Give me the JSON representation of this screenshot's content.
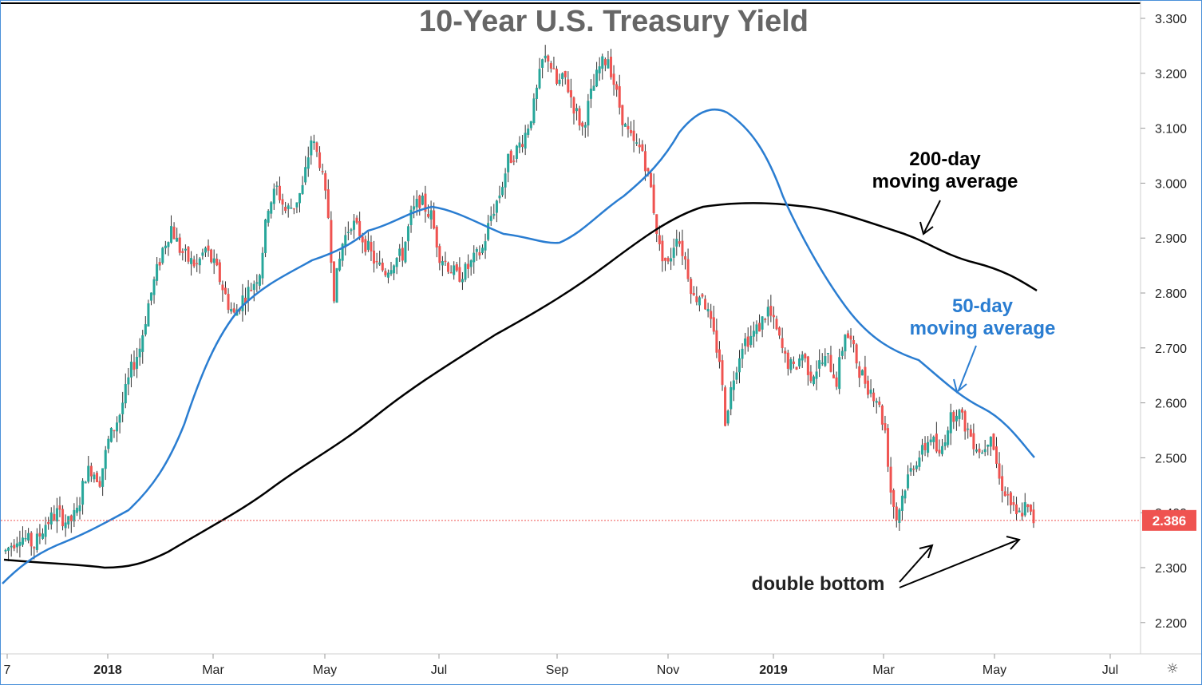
{
  "chart_data": {
    "type": "candlestick",
    "title": "10-Year U.S. Treasury Yield",
    "y_axis": {
      "ticks": [
        "3.300",
        "3.200",
        "3.100",
        "3.000",
        "2.900",
        "2.800",
        "2.700",
        "2.600",
        "2.500",
        "2.400",
        "2.300",
        "2.200"
      ],
      "ylim": [
        2.15,
        3.32
      ]
    },
    "x_axis": {
      "ticks": [
        {
          "label": "7",
          "bold": false
        },
        {
          "label": "2018",
          "bold": true
        },
        {
          "label": "Mar",
          "bold": false
        },
        {
          "label": "May",
          "bold": false
        },
        {
          "label": "Jul",
          "bold": false
        },
        {
          "label": "Sep",
          "bold": false
        },
        {
          "label": "Nov",
          "bold": false
        },
        {
          "label": "2019",
          "bold": true
        },
        {
          "label": "Mar",
          "bold": false
        },
        {
          "label": "May",
          "bold": false
        },
        {
          "label": "Jul",
          "bold": false
        }
      ]
    },
    "last_price": {
      "value": 2.386,
      "label": "2.386",
      "color": "#ef5350"
    },
    "candle_colors": {
      "up": "#26a69a",
      "down": "#ef5350",
      "wick": "#333333"
    },
    "price_path": [
      [
        0,
        2.33
      ],
      [
        5,
        2.36
      ],
      [
        10,
        2.34
      ],
      [
        14,
        2.38
      ],
      [
        18,
        2.4
      ],
      [
        22,
        2.38
      ],
      [
        25,
        2.4
      ],
      [
        28,
        2.47
      ],
      [
        30,
        2.48
      ],
      [
        33,
        2.46
      ],
      [
        36,
        2.53
      ],
      [
        40,
        2.58
      ],
      [
        44,
        2.66
      ],
      [
        47,
        2.7
      ],
      [
        50,
        2.78
      ],
      [
        53,
        2.84
      ],
      [
        55,
        2.88
      ],
      [
        58,
        2.92
      ],
      [
        61,
        2.88
      ],
      [
        64,
        2.86
      ],
      [
        67,
        2.85
      ],
      [
        70,
        2.88
      ],
      [
        74,
        2.84
      ],
      [
        78,
        2.78
      ],
      [
        80,
        2.76
      ],
      [
        83,
        2.79
      ],
      [
        86,
        2.81
      ],
      [
        89,
        2.84
      ],
      [
        92,
        2.96
      ],
      [
        95,
        2.99
      ],
      [
        98,
        2.95
      ],
      [
        101,
        2.96
      ],
      [
        104,
        2.99
      ],
      [
        107,
        3.08
      ],
      [
        110,
        3.04
      ],
      [
        113,
        2.94
      ],
      [
        115,
        2.8
      ],
      [
        118,
        2.89
      ],
      [
        121,
        2.93
      ],
      [
        124,
        2.91
      ],
      [
        127,
        2.88
      ],
      [
        130,
        2.85
      ],
      [
        133,
        2.84
      ],
      [
        136,
        2.86
      ],
      [
        139,
        2.87
      ],
      [
        142,
        2.94
      ],
      [
        145,
        2.97
      ],
      [
        149,
        2.94
      ],
      [
        152,
        2.87
      ],
      [
        155,
        2.85
      ],
      [
        158,
        2.83
      ],
      [
        161,
        2.84
      ],
      [
        164,
        2.86
      ],
      [
        167,
        2.88
      ],
      [
        170,
        2.94
      ],
      [
        173,
        2.98
      ],
      [
        176,
        3.04
      ],
      [
        179,
        3.06
      ],
      [
        182,
        3.09
      ],
      [
        185,
        3.14
      ],
      [
        188,
        3.22
      ],
      [
        190,
        3.23
      ],
      [
        193,
        3.18
      ],
      [
        196,
        3.19
      ],
      [
        199,
        3.14
      ],
      [
        202,
        3.1
      ],
      [
        205,
        3.16
      ],
      [
        208,
        3.21
      ],
      [
        211,
        3.23
      ],
      [
        214,
        3.16
      ],
      [
        217,
        3.1
      ],
      [
        220,
        3.07
      ],
      [
        223,
        3.06
      ],
      [
        226,
        2.99
      ],
      [
        229,
        2.88
      ],
      [
        232,
        2.85
      ],
      [
        235,
        2.91
      ],
      [
        238,
        2.86
      ],
      [
        241,
        2.79
      ],
      [
        244,
        2.8
      ],
      [
        247,
        2.74
      ],
      [
        250,
        2.68
      ],
      [
        252,
        2.57
      ],
      [
        255,
        2.65
      ],
      [
        258,
        2.71
      ],
      [
        261,
        2.72
      ],
      [
        264,
        2.74
      ],
      [
        267,
        2.77
      ],
      [
        270,
        2.73
      ],
      [
        273,
        2.68
      ],
      [
        276,
        2.66
      ],
      [
        279,
        2.69
      ],
      [
        282,
        2.65
      ],
      [
        285,
        2.67
      ],
      [
        288,
        2.68
      ],
      [
        291,
        2.64
      ],
      [
        294,
        2.73
      ],
      [
        296,
        2.71
      ],
      [
        299,
        2.66
      ],
      [
        302,
        2.63
      ],
      [
        305,
        2.61
      ],
      [
        308,
        2.55
      ],
      [
        310,
        2.44
      ],
      [
        312,
        2.39
      ],
      [
        315,
        2.45
      ],
      [
        318,
        2.49
      ],
      [
        321,
        2.51
      ],
      [
        324,
        2.54
      ],
      [
        327,
        2.5
      ],
      [
        330,
        2.56
      ],
      [
        333,
        2.59
      ],
      [
        336,
        2.56
      ],
      [
        339,
        2.53
      ],
      [
        342,
        2.51
      ],
      [
        345,
        2.55
      ],
      [
        348,
        2.46
      ],
      [
        351,
        2.43
      ],
      [
        354,
        2.39
      ],
      [
        357,
        2.41
      ],
      [
        360,
        2.386
      ]
    ]
  },
  "annotations": {
    "ma200_label_line1": "200-day",
    "ma200_label_line2": "moving average",
    "ma50_label_line1": "50-day",
    "ma50_label_line2": "moving average",
    "double_bottom": "double bottom"
  },
  "colors": {
    "ma50": "#2a7dd1",
    "ma200": "#000000",
    "title": "#666666",
    "frame": "#4a90d9"
  },
  "toolbar": {
    "settings_icon": "gear-icon",
    "settings_glyph": "☼"
  }
}
